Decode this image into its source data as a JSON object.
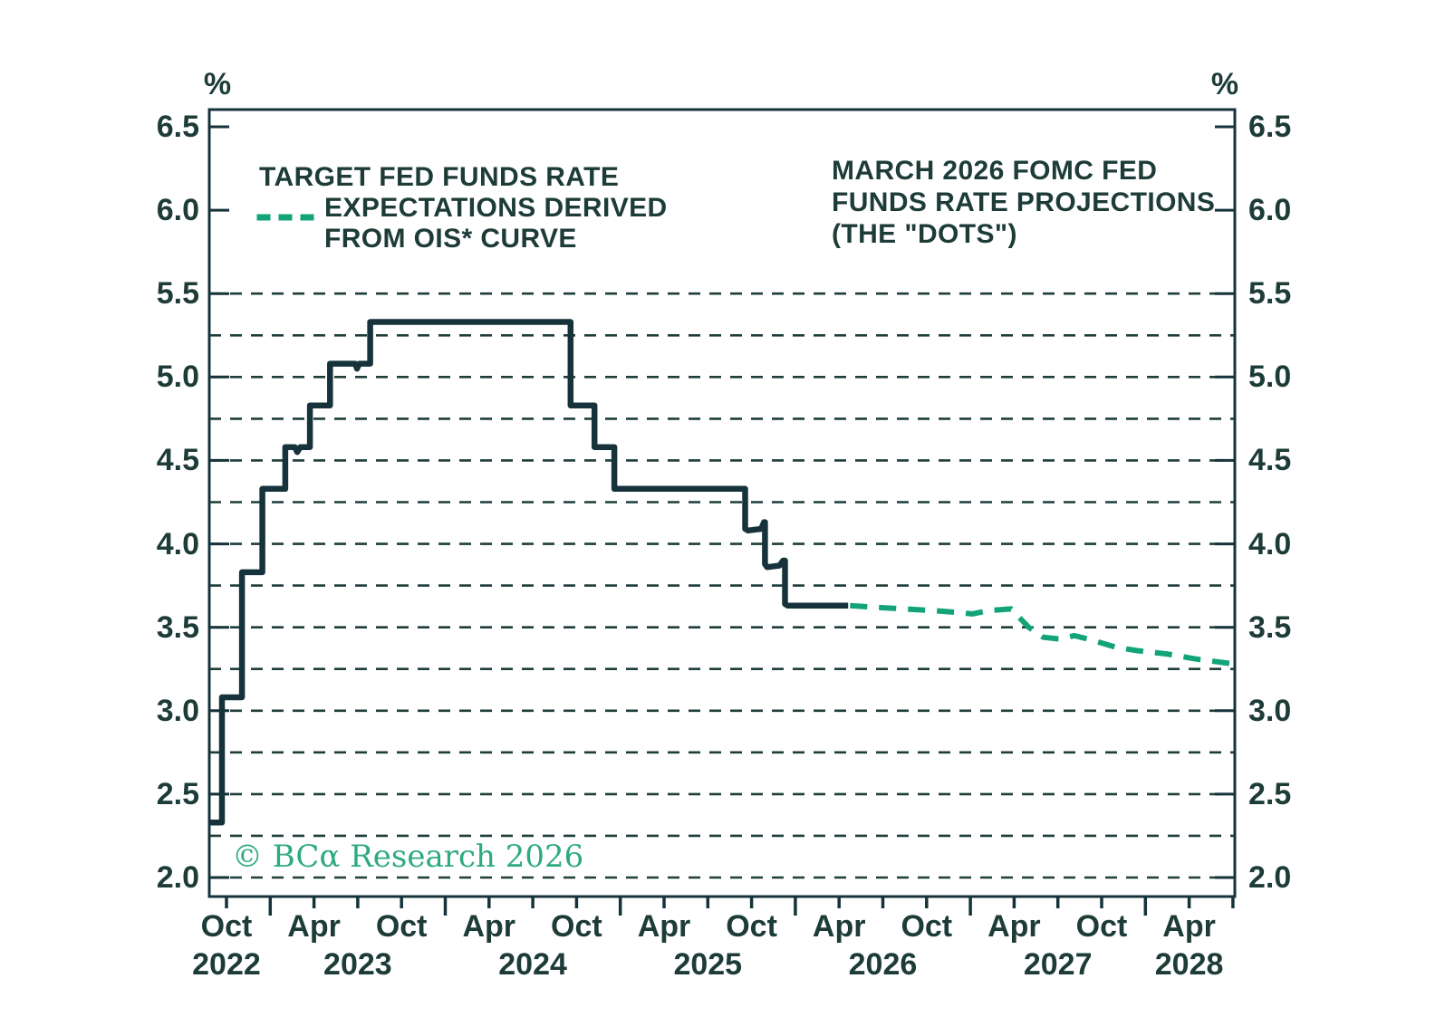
{
  "colors": {
    "ink": "#1d3c38",
    "axis": "#16333b",
    "grid": "#1e3d3b",
    "solid_line": "#16333b",
    "ois_green": "#12a478",
    "copyright_green": "#2eab7d",
    "background": "#ffffff"
  },
  "legend": {
    "lines": [
      "TARGET FED FUNDS RATE",
      "EXPECTATIONS DERIVED",
      "FROM OIS* CURVE"
    ]
  },
  "annotation": {
    "lines": [
      "MARCH 2026 FOMC FED",
      "FUNDS RATE PROJECTIONS",
      "(THE \"DOTS\")"
    ]
  },
  "copyright_text": "© BCα Research 2026",
  "chart_data": {
    "type": "line",
    "y_axis": {
      "unit": "%",
      "min": 2.0,
      "max": 6.5,
      "tick_step": 0.5,
      "tick_labels": [
        "2.0",
        "2.5",
        "3.0",
        "3.5",
        "4.0",
        "4.5",
        "5.0",
        "5.5",
        "6.0",
        "6.5"
      ],
      "grid_start": 2.0,
      "grid_end": 5.5,
      "grid_step": 0.25,
      "dual_axis": true
    },
    "x_axis": {
      "range_start": "2022-08-26",
      "range_end": "2028-07-05",
      "tick_step_months": 3,
      "major_tick_at": "January",
      "month_labels": [
        {
          "text": "Oct",
          "m": 0
        },
        {
          "text": "Apr",
          "m": 6
        },
        {
          "text": "Oct",
          "m": 12
        },
        {
          "text": "Apr",
          "m": 18
        },
        {
          "text": "Oct",
          "m": 24
        },
        {
          "text": "Apr",
          "m": 30
        },
        {
          "text": "Oct",
          "m": 36
        },
        {
          "text": "Apr",
          "m": 42
        },
        {
          "text": "Oct",
          "m": 48
        },
        {
          "text": "Apr",
          "m": 54
        },
        {
          "text": "Oct",
          "m": 60
        },
        {
          "text": "Apr",
          "m": 66
        }
      ],
      "year_labels": [
        {
          "text": "2022",
          "m": 0
        },
        {
          "text": "2023",
          "m": 9
        },
        {
          "text": "2024",
          "m": 21
        },
        {
          "text": "2025",
          "m": 33
        },
        {
          "text": "2026",
          "m": 45
        },
        {
          "text": "2027",
          "m": 57
        },
        {
          "text": "2028",
          "m": 66
        }
      ]
    },
    "series": [
      {
        "id": "target-fed-funds-rate",
        "style": "solid",
        "color": "#16333b",
        "points": [
          [
            "2022-08-26",
            2.33
          ],
          [
            "2022-09-22",
            2.33
          ],
          [
            "2022-09-22",
            3.08
          ],
          [
            "2022-11-03",
            3.08
          ],
          [
            "2022-11-03",
            3.83
          ],
          [
            "2022-12-15",
            3.83
          ],
          [
            "2022-12-15",
            4.33
          ],
          [
            "2023-02-02",
            4.33
          ],
          [
            "2023-02-02",
            4.58
          ],
          [
            "2023-02-22",
            4.58
          ],
          [
            "2023-02-27",
            4.55
          ],
          [
            "2023-03-03",
            4.58
          ],
          [
            "2023-03-23",
            4.58
          ],
          [
            "2023-03-23",
            4.83
          ],
          [
            "2023-05-04",
            4.83
          ],
          [
            "2023-05-04",
            5.08
          ],
          [
            "2023-06-26",
            5.08
          ],
          [
            "2023-06-30",
            5.05
          ],
          [
            "2023-07-04",
            5.08
          ],
          [
            "2023-07-27",
            5.08
          ],
          [
            "2023-07-27",
            5.33
          ],
          [
            "2024-09-19",
            5.33
          ],
          [
            "2024-09-19",
            4.83
          ],
          [
            "2024-11-08",
            4.83
          ],
          [
            "2024-11-08",
            4.58
          ],
          [
            "2024-12-19",
            4.58
          ],
          [
            "2024-12-19",
            4.33
          ],
          [
            "2025-09-18",
            4.33
          ],
          [
            "2025-09-18",
            4.09
          ],
          [
            "2025-09-24",
            4.08
          ],
          [
            "2025-10-21",
            4.09
          ],
          [
            "2025-10-27",
            4.13
          ],
          [
            "2025-10-29",
            4.13
          ],
          [
            "2025-10-29",
            3.88
          ],
          [
            "2025-11-03",
            3.86
          ],
          [
            "2025-11-29",
            3.87
          ],
          [
            "2025-12-06",
            3.9
          ],
          [
            "2025-12-10",
            3.9
          ],
          [
            "2025-12-10",
            3.64
          ],
          [
            "2025-12-15",
            3.63
          ],
          [
            "2026-04-20",
            3.63
          ]
        ]
      },
      {
        "id": "ois-expectations",
        "style": "dashed",
        "color": "#12a478",
        "points": [
          [
            "2026-04-24",
            3.63
          ],
          [
            "2026-06-15",
            3.62
          ],
          [
            "2026-08-15",
            3.61
          ],
          [
            "2026-10-15",
            3.6
          ],
          [
            "2026-12-01",
            3.59
          ],
          [
            "2027-01-05",
            3.58
          ],
          [
            "2027-02-10",
            3.6
          ],
          [
            "2027-03-25",
            3.61
          ],
          [
            "2027-05-01",
            3.5
          ],
          [
            "2027-06-01",
            3.44
          ],
          [
            "2027-07-05",
            3.43
          ],
          [
            "2027-08-05",
            3.45
          ],
          [
            "2027-09-15",
            3.42
          ],
          [
            "2027-11-01",
            3.38
          ],
          [
            "2027-12-15",
            3.36
          ],
          [
            "2028-02-15",
            3.34
          ],
          [
            "2028-04-15",
            3.31
          ],
          [
            "2028-07-04",
            3.28
          ]
        ]
      }
    ]
  }
}
